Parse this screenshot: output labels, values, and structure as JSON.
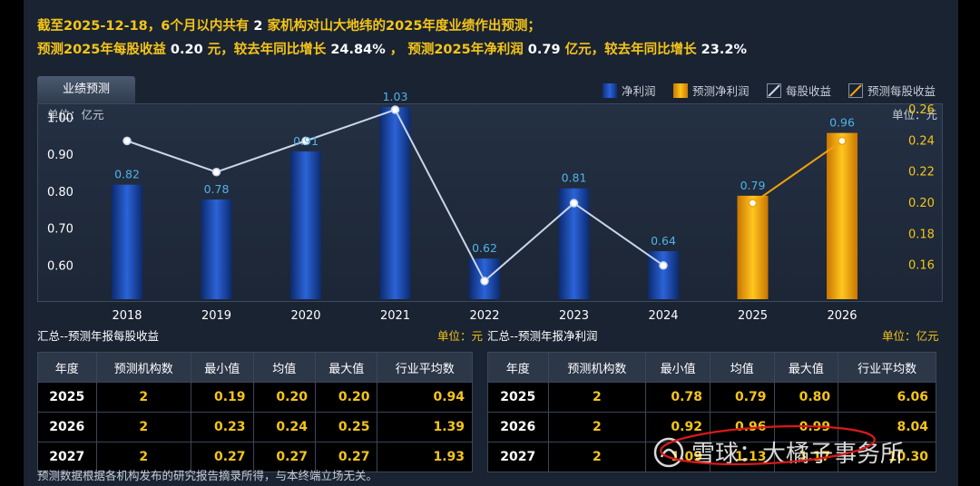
{
  "summary": {
    "line1_a": "截至2025-12-18，6个月以内共有",
    "line1_count": "2",
    "line1_b": "家机构对山大地纬的2025年度业绩作出预测；",
    "line2_a": "预测2025年每股收益",
    "line2_eps": "0.20",
    "line2_b": "元，较去年同比增长",
    "line2_eps_growth": "24.84%",
    "line2_c": "，  预测2025年净利润",
    "line2_profit": "0.79",
    "line2_d": "亿元，较去年同比增长",
    "line2_profit_growth": "23.2%"
  },
  "tab_label": "业绩预测",
  "legend": {
    "net_profit": "净利润",
    "forecast_profit": "预测净利润",
    "eps": "每股收益",
    "forecast_eps": "预测每股收益"
  },
  "colors": {
    "accent": "#f5c518",
    "bar_blue": "#1e4fb5",
    "bar_orange": "#f2a20c",
    "line_white": "#c9d6ea",
    "line_orange": "#f2a20c"
  },
  "chart_data": {
    "type": "bar+line",
    "categories": [
      "2018",
      "2019",
      "2020",
      "2021",
      "2022",
      "2023",
      "2024",
      "2025",
      "2026"
    ],
    "left_unit": "单位：亿元",
    "right_unit": "单位：元",
    "left_ticks": [
      "1.00",
      "0.90",
      "0.80",
      "0.70",
      "0.60"
    ],
    "right_ticks": [
      "0.26",
      "0.24",
      "0.22",
      "0.20",
      "0.18",
      "0.16"
    ],
    "left_ylim": [
      0.51,
      1.04
    ],
    "right_ylim": [
      0.1383,
      0.2641
    ],
    "series": [
      {
        "name": "净利润",
        "kind": "bar",
        "values": [
          0.82,
          0.78,
          0.91,
          1.03,
          0.62,
          0.81,
          0.64,
          null,
          null
        ],
        "labels": [
          "0.82",
          "0.78",
          "0.91",
          "1.03",
          "0.62",
          "0.81",
          "0.64",
          "",
          ""
        ]
      },
      {
        "name": "预测净利润",
        "kind": "bar",
        "values": [
          null,
          null,
          null,
          null,
          null,
          null,
          null,
          0.79,
          0.96
        ],
        "labels": [
          "",
          "",
          "",
          "",
          "",
          "",
          "",
          "0.79",
          "0.96"
        ]
      },
      {
        "name": "每股收益",
        "kind": "line",
        "values": [
          0.24,
          0.22,
          0.24,
          0.26,
          0.15,
          0.2,
          0.16,
          null,
          null
        ]
      },
      {
        "name": "预测每股收益",
        "kind": "line",
        "values": [
          null,
          null,
          null,
          null,
          null,
          null,
          null,
          0.2,
          0.24
        ]
      }
    ]
  },
  "eps_table": {
    "title": "汇总--预测年报每股收益",
    "unit": "单位：元",
    "headers": [
      "年度",
      "预测机构数",
      "最小值",
      "均值",
      "最大值",
      "行业平均数"
    ],
    "rows": [
      [
        "2025",
        "2",
        "0.19",
        "0.20",
        "0.20",
        "0.94"
      ],
      [
        "2026",
        "2",
        "0.23",
        "0.24",
        "0.25",
        "1.39"
      ],
      [
        "2027",
        "2",
        "0.27",
        "0.27",
        "0.27",
        "1.93"
      ]
    ]
  },
  "profit_table": {
    "title": "汇总--预测年报净利润",
    "unit": "单位：亿元",
    "headers": [
      "年度",
      "预测机构数",
      "最小值",
      "均值",
      "最大值",
      "行业平均数"
    ],
    "rows": [
      [
        "2025",
        "2",
        "0.78",
        "0.79",
        "0.80",
        "6.06"
      ],
      [
        "2026",
        "2",
        "0.92",
        "0.96",
        "0.99",
        "8.04"
      ],
      [
        "2027",
        "2",
        "1.09",
        "1.13",
        "1.17",
        "10.30"
      ]
    ]
  },
  "note": "预测数据根据各机构发布的研究报告摘录所得，与本终端立场无关。",
  "watermark": "雪球：大橘子事务所"
}
